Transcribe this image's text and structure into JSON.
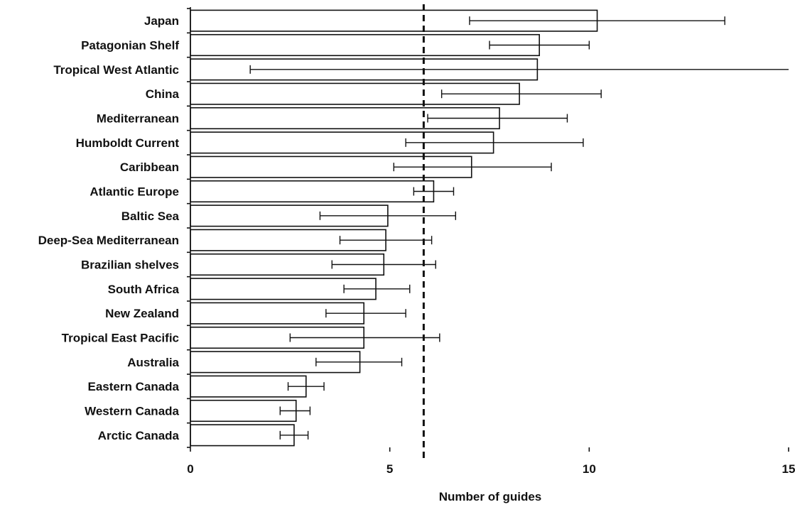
{
  "chart_data": {
    "type": "bar",
    "orientation": "horizontal",
    "title": "",
    "xlabel": "Number of guides",
    "ylabel": "",
    "xlim": [
      0,
      15
    ],
    "xticks": [
      0,
      5,
      10,
      15
    ],
    "grid": false,
    "legend": "none",
    "reference_line": {
      "value": 5.85,
      "style": "dashed"
    },
    "categories": [
      "Japan",
      "Patagonian Shelf",
      "Tropical West Atlantic",
      "China",
      "Mediterranean",
      "Humboldt Current",
      "Caribbean",
      "Atlantic Europe",
      "Baltic Sea",
      "Deep-Sea Mediterranean",
      "Brazilian shelves",
      "South Africa",
      "New Zealand",
      "Tropical East Pacific",
      "Australia",
      "Eastern Canada",
      "Western Canada",
      "Arctic Canada"
    ],
    "values": [
      10.2,
      8.75,
      8.7,
      8.25,
      7.75,
      7.6,
      7.05,
      6.1,
      4.95,
      4.9,
      4.85,
      4.65,
      4.35,
      4.35,
      4.25,
      2.9,
      2.65,
      2.6
    ],
    "error_low": [
      7.0,
      7.5,
      1.5,
      6.3,
      5.95,
      5.4,
      5.1,
      5.6,
      3.25,
      3.75,
      3.55,
      3.85,
      3.4,
      2.5,
      3.15,
      2.45,
      2.25,
      2.25
    ],
    "error_high": [
      13.4,
      10.0,
      15.0,
      10.3,
      9.45,
      9.85,
      9.05,
      6.6,
      6.65,
      6.05,
      6.15,
      5.5,
      5.4,
      6.25,
      5.3,
      3.35,
      3.0,
      2.95
    ],
    "colors": {
      "bar_fill": "#ffffff",
      "bar_stroke": "#111111"
    }
  }
}
